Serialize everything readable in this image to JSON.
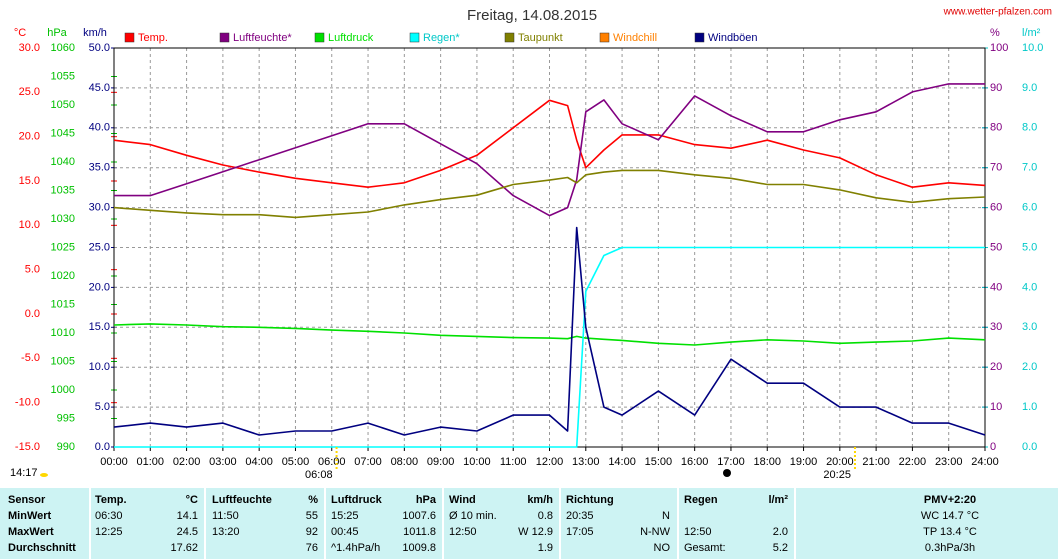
{
  "chart_data": {
    "type": "line",
    "title": "Freitag, 14.08.2015",
    "source": "www.wetter-pfalzen.com",
    "grid": true,
    "xlim": [
      0,
      24
    ],
    "xticks": [
      {
        "value": 0,
        "label": "00:00"
      },
      {
        "value": 1,
        "label": "01:00"
      },
      {
        "value": 2,
        "label": "02:00"
      },
      {
        "value": 3,
        "label": "03:00"
      },
      {
        "value": 4,
        "label": "04:00"
      },
      {
        "value": 5,
        "label": "05:00"
      },
      {
        "value": 6,
        "label": "06:00"
      },
      {
        "value": 7,
        "label": "07:00"
      },
      {
        "value": 8,
        "label": "08:00"
      },
      {
        "value": 9,
        "label": "09:00"
      },
      {
        "value": 10,
        "label": "10:00"
      },
      {
        "value": 11,
        "label": "11:00"
      },
      {
        "value": 12,
        "label": "12:00"
      },
      {
        "value": 13,
        "label": "13:00"
      },
      {
        "value": 14,
        "label": "14:00"
      },
      {
        "value": 15,
        "label": "15:00"
      },
      {
        "value": 16,
        "label": "16:00"
      },
      {
        "value": 17,
        "label": "17:00"
      },
      {
        "value": 18,
        "label": "18:00"
      },
      {
        "value": 19,
        "label": "19:00"
      },
      {
        "value": 20,
        "label": "20:00"
      },
      {
        "value": 21,
        "label": "21:00"
      },
      {
        "value": 22,
        "label": "22:00"
      },
      {
        "value": 23,
        "label": "23:00"
      },
      {
        "value": 24,
        "label": "24:00"
      }
    ],
    "axes": {
      "y": {
        "label": "°C",
        "color": "#ff0000",
        "lim": [
          -15,
          30
        ],
        "ticks": [
          {
            "value": -15,
            "label": "-15.0"
          },
          {
            "value": -10,
            "label": "-10.0"
          },
          {
            "value": -5,
            "label": "-5.0"
          },
          {
            "value": 0,
            "label": "0.0"
          },
          {
            "value": 5,
            "label": "5.0"
          },
          {
            "value": 10,
            "label": "10.0"
          },
          {
            "value": 15,
            "label": "15.0"
          },
          {
            "value": 20,
            "label": "20.0"
          },
          {
            "value": 25,
            "label": "25.0"
          },
          {
            "value": 30,
            "label": "30.0"
          }
        ]
      },
      "y2": {
        "label": "hPa",
        "color": "#00c000",
        "lim": [
          990,
          1060
        ],
        "ticks": [
          990,
          995,
          1000,
          1005,
          1010,
          1015,
          1020,
          1025,
          1030,
          1035,
          1040,
          1045,
          1050,
          1055,
          1060
        ]
      },
      "y3": {
        "label": "km/h",
        "color": "#000080",
        "lim": [
          0,
          50
        ],
        "ticks": [
          {
            "value": 0,
            "label": "0.0"
          },
          {
            "value": 5,
            "label": "5.0"
          },
          {
            "value": 10,
            "label": "10.0"
          },
          {
            "value": 15,
            "label": "15.0"
          },
          {
            "value": 20,
            "label": "20.0"
          },
          {
            "value": 25,
            "label": "25.0"
          },
          {
            "value": 30,
            "label": "30.0"
          },
          {
            "value": 35,
            "label": "35.0"
          },
          {
            "value": 40,
            "label": "40.0"
          },
          {
            "value": 45,
            "label": "45.0"
          },
          {
            "value": 50,
            "label": "50.0"
          }
        ]
      },
      "y4": {
        "label": "%",
        "color": "#800080",
        "lim": [
          0,
          100
        ],
        "ticks": [
          0,
          10,
          20,
          30,
          40,
          50,
          60,
          70,
          80,
          90,
          100
        ]
      },
      "y5": {
        "label": "l/m²",
        "color": "#00c8c8",
        "lim": [
          0,
          10
        ],
        "ticks": [
          {
            "value": 0,
            "label": "0.0"
          },
          {
            "value": 1,
            "label": "1.0"
          },
          {
            "value": 2,
            "label": "2.0"
          },
          {
            "value": 3,
            "label": "3.0"
          },
          {
            "value": 4,
            "label": "4.0"
          },
          {
            "value": 5,
            "label": "5.0"
          },
          {
            "value": 6,
            "label": "6.0"
          },
          {
            "value": 7,
            "label": "7.0"
          },
          {
            "value": 8,
            "label": "8.0"
          },
          {
            "value": 9,
            "label": "9.0"
          },
          {
            "value": 10,
            "label": "10.0"
          }
        ]
      }
    },
    "x": [
      0,
      1,
      2,
      3,
      4,
      5,
      6,
      7,
      8,
      9,
      10,
      11,
      12,
      12.5,
      12.75,
      13,
      13.5,
      14,
      15,
      16,
      17,
      18,
      19,
      20,
      21,
      22,
      23,
      24
    ],
    "series": [
      {
        "name": "Temp.",
        "color": "#ff0000",
        "axis": "y",
        "values": [
          19.6,
          19.1,
          17.9,
          16.8,
          16.0,
          15.3,
          14.8,
          14.3,
          14.8,
          16.2,
          17.9,
          21.0,
          24.1,
          23.5,
          19.6,
          16.5,
          18.5,
          20.2,
          20.2,
          19.1,
          18.7,
          19.6,
          18.5,
          17.6,
          15.7,
          14.3,
          14.8,
          14.5
        ]
      },
      {
        "name": "Luftfeuchte*",
        "color": "#800080",
        "axis": "y4",
        "values": [
          63,
          63,
          66,
          69,
          72,
          75,
          78,
          81,
          81,
          76,
          71,
          63,
          58,
          60,
          67,
          84,
          87,
          81,
          77,
          88,
          83,
          79,
          79,
          82,
          84,
          89,
          91,
          91
        ]
      },
      {
        "name": "Luftdruck",
        "color": "#00e000",
        "axis": "y2",
        "values": [
          1011.4,
          1011.6,
          1011.4,
          1011.1,
          1011,
          1010.8,
          1010.5,
          1010.3,
          1010,
          1009.6,
          1009.4,
          1009.2,
          1009.1,
          1009,
          1009.4,
          1009.1,
          1008.9,
          1008.7,
          1008.2,
          1007.9,
          1008.4,
          1008.8,
          1008.6,
          1008.2,
          1008.4,
          1008.6,
          1009.1,
          1008.8
        ]
      },
      {
        "name": "Regen*",
        "color": "#00ffff",
        "axis": "y5",
        "values": [
          0,
          0,
          0,
          0,
          0,
          0,
          0,
          0,
          0,
          0,
          0,
          0,
          0,
          0,
          0,
          3.9,
          4.8,
          5.0,
          5.0,
          5.0,
          5.0,
          5.0,
          5.0,
          5.0,
          5.0,
          5.0,
          5.0,
          5.0
        ]
      },
      {
        "name": "Taupunkt",
        "color": "#808000",
        "axis": "y",
        "values": [
          12.0,
          11.7,
          11.4,
          11.2,
          11.2,
          10.9,
          11.2,
          11.5,
          12.3,
          12.9,
          13.4,
          14.6,
          15.1,
          15.4,
          14.8,
          15.7,
          16.0,
          16.2,
          16.2,
          15.7,
          15.3,
          14.6,
          14.6,
          14.0,
          13.1,
          12.6,
          13.0,
          13.2
        ]
      },
      {
        "name": "Windchill",
        "color": "#ff8000",
        "axis": "y",
        "values": [
          null,
          null,
          null,
          null,
          null,
          null,
          null,
          null,
          null,
          null,
          null,
          null,
          null,
          null,
          null,
          null,
          null,
          null,
          null,
          null,
          null,
          null,
          null,
          null,
          null,
          null,
          null,
          null
        ]
      },
      {
        "name": "Windböen",
        "color": "#000080",
        "axis": "y3",
        "values": [
          2.5,
          3,
          2.5,
          3,
          1.5,
          2,
          2,
          3,
          1.5,
          2.5,
          2,
          4,
          4,
          2,
          27.5,
          15,
          5,
          4,
          7,
          4,
          11,
          8,
          8,
          5,
          5,
          3,
          3,
          1.5
        ]
      }
    ],
    "annotations": [
      {
        "label": "14:17"
      },
      {
        "x": 6.133,
        "label": "06:08"
      },
      {
        "x": 20.417,
        "label": "20:25"
      }
    ]
  },
  "table": {
    "header": [
      [
        "Sensor"
      ],
      [
        "Temp.",
        "°C"
      ],
      [
        "Luftfeuchte",
        "%"
      ],
      [
        "Luftdruck",
        "hPa"
      ],
      [
        "Wind",
        "km/h"
      ],
      [
        "Richtung"
      ],
      [
        "Regen",
        "l/m²"
      ],
      [
        "PMV+2:20"
      ]
    ],
    "rows": [
      [
        "MinWert",
        [
          "06:30",
          "14.1"
        ],
        [
          "11:50",
          "55"
        ],
        [
          "15:25",
          "1007.6"
        ],
        [
          "Ø 10 min.",
          "0.8"
        ],
        [
          "20:35",
          "N"
        ],
        [],
        [
          "WC 14.7 °C"
        ]
      ],
      [
        "MaxWert",
        [
          "12:25",
          "24.5"
        ],
        [
          "13:20",
          "92"
        ],
        [
          "00:45",
          "1011.8"
        ],
        [
          "12:50",
          "W 12.9"
        ],
        [
          "17:05",
          "N-NW"
        ],
        [
          "12:50",
          "2.0"
        ],
        [
          "TP 13.4 °C"
        ]
      ],
      [
        "Durchschnitt",
        [
          "17.62"
        ],
        [
          "76"
        ],
        [
          "^1.4hPa/h",
          "1009.8"
        ],
        [
          "1.9"
        ],
        [
          "NO"
        ],
        [
          "Gesamt:",
          "5.2"
        ],
        [
          "0.3hPa/3h"
        ]
      ]
    ]
  }
}
